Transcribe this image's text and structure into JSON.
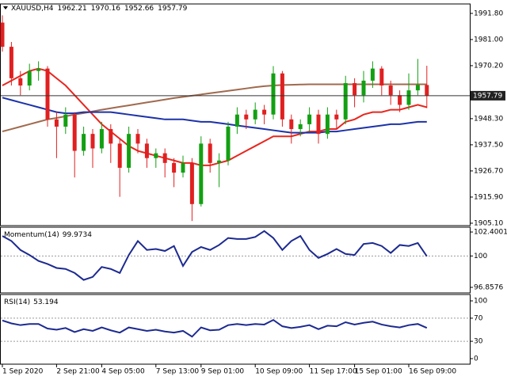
{
  "chart_data": [
    {
      "type": "candlestick",
      "title": "XAUUSD,H4",
      "categories": [
        "1 Sep 2020",
        null,
        null,
        null,
        null,
        null,
        "2 Sep 21:00",
        null,
        null,
        null,
        null,
        "4 Sep 05:00",
        null,
        null,
        null,
        null,
        null,
        "7 Sep 13:00",
        null,
        null,
        null,
        null,
        "9 Sep 01:00",
        null,
        null,
        null,
        null,
        null,
        "10 Sep 09:00",
        null,
        null,
        null,
        null,
        null,
        "11 Sep 17:00",
        null,
        null,
        null,
        null,
        "15 Sep 01:00",
        null,
        null,
        null,
        null,
        null,
        "16 Sep 09:00",
        null,
        null
      ],
      "open": [
        1988,
        1978,
        1965,
        1962,
        1968,
        1969,
        1948,
        1945,
        1950,
        1935,
        1942,
        1936,
        1944,
        1938,
        1928,
        1942,
        1938,
        1932,
        1934,
        1930,
        1926,
        1930,
        1913,
        1938,
        1930,
        1931,
        1945,
        1950,
        1948,
        1952,
        1950,
        1967,
        1948,
        1944,
        1946,
        1950,
        1942,
        1950,
        1948,
        1963,
        1958,
        1964,
        1969,
        1962,
        1958,
        1954,
        1960,
        1962.21
      ],
      "high": [
        1991,
        1980,
        1968,
        1971,
        1972,
        1970,
        1951,
        1953,
        1951,
        1945,
        1944,
        1947,
        1946,
        1940,
        1945,
        1944,
        1940,
        1936,
        1936,
        1932,
        1933,
        1932,
        1941,
        1940,
        1934,
        1947,
        1953,
        1952,
        1955,
        1954,
        1970,
        1968,
        1950,
        1948,
        1953,
        1952,
        1953,
        1952,
        1966,
        1965,
        1968,
        1972,
        1970,
        1964,
        1960,
        1967,
        1973,
        1970.16
      ],
      "low": [
        1976,
        1962,
        1958,
        1960,
        1964,
        1945,
        1932,
        1942,
        1924,
        1933,
        1928,
        1934,
        1930,
        1916,
        1926,
        1934,
        1928,
        1928,
        1924,
        1920,
        1924,
        1906,
        1912,
        1926,
        1920,
        1929,
        1942,
        1944,
        1946,
        1946,
        1948,
        1945,
        1938,
        1941,
        1943,
        1938,
        1940,
        1944,
        1946,
        1953,
        1955,
        1961,
        1958,
        1954,
        1951,
        1952,
        1958,
        1952.66
      ],
      "close": [
        1978,
        1965,
        1962,
        1968,
        1969,
        1948,
        1945,
        1950,
        1935,
        1942,
        1936,
        1944,
        1938,
        1928,
        1942,
        1938,
        1932,
        1934,
        1930,
        1926,
        1930,
        1913,
        1938,
        1930,
        1931,
        1945,
        1950,
        1948,
        1952,
        1950,
        1967,
        1948,
        1944,
        1946,
        1950,
        1942,
        1950,
        1948,
        1963,
        1958,
        1964,
        1969,
        1962,
        1958,
        1954,
        1960,
        1962.21,
        1957.79
      ],
      "up_color": "#12a012",
      "down_color": "#e02020",
      "series": [
        {
          "color": "#e8261e",
          "values": [
            1962,
            1964,
            1966,
            1968,
            1969,
            1968,
            1965,
            1962,
            1958,
            1954,
            1950,
            1946,
            1943,
            1940,
            1937,
            1935,
            1934,
            1933,
            1932,
            1931,
            1930,
            1930,
            1929,
            1929,
            1930,
            1931,
            1933,
            1935,
            1937,
            1939,
            1941,
            1941,
            1941,
            1942,
            1943,
            1943,
            1944,
            1944,
            1947,
            1948,
            1950,
            1951,
            1951,
            1952,
            1952,
            1953,
            1954,
            1953
          ]
        },
        {
          "color": "#a06a4e",
          "values": [
            1943,
            1944,
            1945,
            1946,
            1947,
            1948,
            1948.6,
            1949.3,
            1950,
            1950.6,
            1951.3,
            1952,
            1952.6,
            1953.2,
            1953.8,
            1954.4,
            1955,
            1955.6,
            1956.2,
            1956.8,
            1957.3,
            1957.8,
            1958.3,
            1958.8,
            1959.3,
            1959.8,
            1960.3,
            1960.8,
            1961.3,
            1961.7,
            1962,
            1962.2,
            1962.3,
            1962.4,
            1962.5,
            1962.5,
            1962.5,
            1962.5,
            1962.5,
            1962.5,
            1962.5,
            1962.5,
            1962.5,
            1962.5,
            1962.5,
            1962.5,
            1962.5,
            1962.5
          ]
        },
        {
          "color": "#1c32a8",
          "values": [
            1957,
            1956,
            1955,
            1954,
            1953,
            1952,
            1951,
            1950.5,
            1950.5,
            1951,
            1951,
            1951,
            1951,
            1950.5,
            1950,
            1949.5,
            1949,
            1948.5,
            1948,
            1948,
            1948,
            1947.5,
            1947,
            1947,
            1946.5,
            1946,
            1945.5,
            1945,
            1944.5,
            1944,
            1943.5,
            1943,
            1942.5,
            1942.5,
            1942.5,
            1942.5,
            1943,
            1943,
            1943.5,
            1944,
            1944.5,
            1945,
            1945.5,
            1946,
            1946,
            1946.5,
            1947,
            1947
          ]
        }
      ],
      "last_price": 1957.79,
      "ylim": [
        1904.1,
        1995.7
      ],
      "yticks": [
        {
          "value": 1991.8,
          "label": "1991.80"
        },
        {
          "value": 1981,
          "label": "1981.00"
        },
        {
          "value": 1970.2,
          "label": "1970.20"
        },
        {
          "value": 1948.3,
          "label": "1948.30"
        },
        {
          "value": 1937.5,
          "label": "1937.50"
        },
        {
          "value": 1926.7,
          "label": "1926.70"
        },
        {
          "value": 1915.9,
          "label": "1915.90"
        },
        {
          "value": 1905.1,
          "label": "1905.10"
        }
      ]
    },
    {
      "type": "line",
      "title": "Momentum(14)",
      "series": [
        {
          "color": "#1c2a90",
          "values": [
            102,
            101.5,
            100.6,
            100.1,
            99.5,
            99.2,
            98.8,
            98.7,
            98.3,
            97.6,
            97.9,
            98.9,
            98.7,
            98.3,
            100.1,
            101.5,
            100.6,
            100.7,
            100.5,
            101,
            99,
            100.4,
            100.9,
            100.6,
            101.1,
            101.8,
            101.7,
            101.7,
            101.9,
            102.5,
            101.8,
            100.6,
            101.5,
            102,
            100.6,
            99.8,
            100.2,
            100.7,
            100.2,
            100.1,
            101.2,
            101.3,
            101,
            100.3,
            101.1,
            101,
            101.3,
            99.9734
          ]
        }
      ],
      "ylim": [
        96.3,
        102.88
      ],
      "yticks": [
        102.4001,
        100,
        96.8576
      ],
      "levels": [
        100
      ]
    },
    {
      "type": "line",
      "title": "RSI(14)",
      "series": [
        {
          "color": "#1c2a90",
          "values": [
            66,
            61,
            58,
            60,
            60,
            52,
            50,
            53,
            46,
            51,
            48,
            54,
            49,
            45,
            54,
            51,
            48,
            50,
            47,
            45,
            48,
            38,
            54,
            49,
            50,
            58,
            60,
            58,
            60,
            59,
            67,
            56,
            53,
            55,
            58,
            51,
            57,
            56,
            63,
            59,
            62,
            64,
            59,
            56,
            54,
            58,
            60,
            53.194
          ]
        }
      ],
      "ylim": [
        -9.6,
        111
      ],
      "yticks": [
        100,
        70,
        30,
        0
      ],
      "levels": [
        70,
        30
      ]
    }
  ]
}
